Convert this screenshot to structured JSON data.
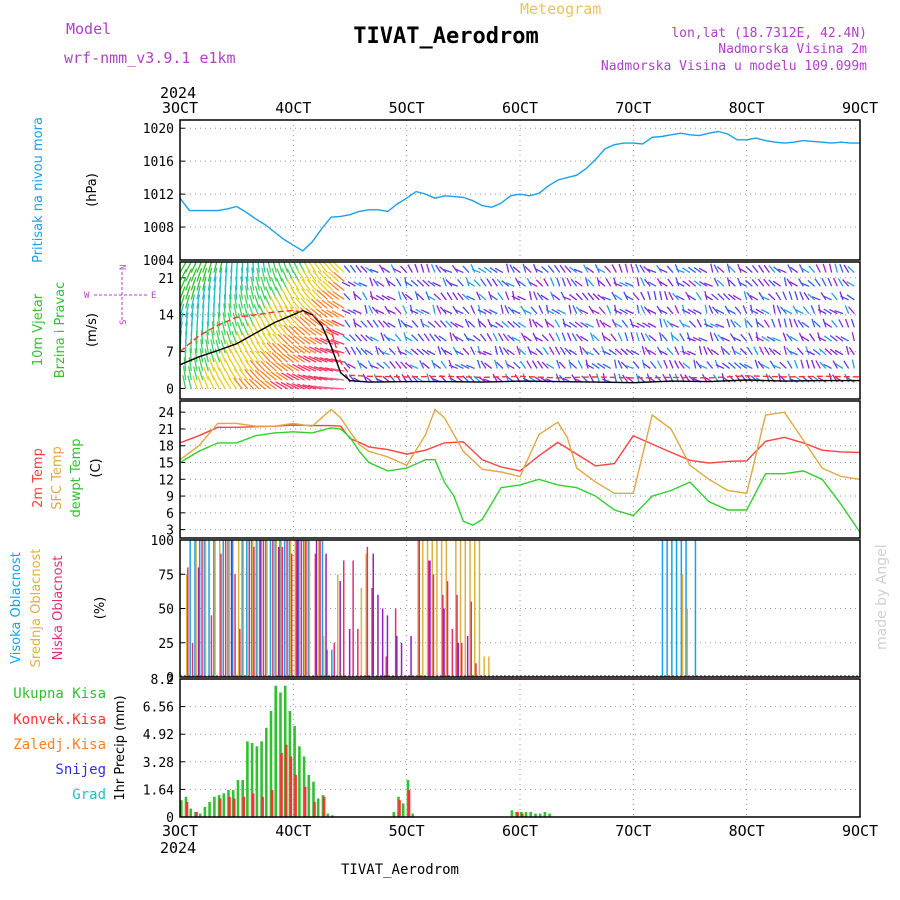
{
  "header": {
    "model_label": "Model",
    "model_name": "wrf-nmm_v3.9.1 e1km",
    "meteogram_label": "Meteogram",
    "station_title": "TIVAT_Aerodrom",
    "lonlat": "lon,lat (18.7312E, 42.4N)",
    "altitude": "Nadmorska Visina 2m",
    "model_altitude": "Nadmorska Visina u modelu 109.099m",
    "colors": {
      "purple": "#b040c8",
      "orange": "#f0c060",
      "title": "#000000"
    }
  },
  "footer": {
    "station": "TIVAT_Aerodrom"
  },
  "watermark": "made by Angel",
  "time_axis": {
    "year": "2024",
    "labels": [
      "3OCT",
      "4OCT",
      "5OCT",
      "6OCT",
      "7OCT",
      "8OCT",
      "9OCT"
    ]
  },
  "chart_data": [
    {
      "id": "pressure",
      "type": "line",
      "title": "",
      "ylabel_main": "Pritisak na nivou mora",
      "ylabel_unit": "(hPa)",
      "ylim": [
        1004,
        1021
      ],
      "yticks": [
        "1004",
        "1008",
        "1012",
        "1016",
        "1020"
      ],
      "grid": true,
      "x_range": [
        0,
        144
      ],
      "series": [
        {
          "color": "#1aa0e8",
          "x": [
            0,
            2,
            4,
            6,
            8,
            10,
            12,
            14,
            16,
            18,
            20,
            22,
            24,
            26,
            28,
            30,
            32,
            34,
            36,
            38,
            40,
            42,
            44,
            46,
            48,
            50,
            52,
            54,
            56,
            58,
            60,
            62,
            64,
            66,
            68,
            70,
            72,
            74,
            76,
            78,
            80,
            82,
            84,
            86,
            88,
            90,
            92,
            94,
            96,
            98,
            100,
            102,
            104,
            106,
            108,
            110,
            112,
            114,
            116,
            118,
            120,
            122,
            124,
            126,
            128,
            130,
            132,
            134,
            136,
            138,
            140,
            142,
            144
          ],
          "y": [
            1011.5,
            1010,
            1010,
            1010,
            1010,
            1010.2,
            1010.5,
            1009.8,
            1009,
            1008.3,
            1007.4,
            1006.5,
            1005.8,
            1005.1,
            1006.2,
            1007.8,
            1009.2,
            1009.3,
            1009.5,
            1009.9,
            1010.1,
            1010.1,
            1009.9,
            1010.8,
            1011.5,
            1012.3,
            1012,
            1011.5,
            1011.8,
            1011.7,
            1011.6,
            1011.2,
            1010.6,
            1010.4,
            1010.9,
            1011.8,
            1012,
            1011.8,
            1012.1,
            1013,
            1013.7,
            1014,
            1014.3,
            1015.1,
            1016.2,
            1017.5,
            1018,
            1018.2,
            1018.2,
            1018.1,
            1018.9,
            1019,
            1019.2,
            1019.4,
            1019.2,
            1019.1,
            1019.4,
            1019.6,
            1019.3,
            1018.6,
            1018.6,
            1018.8,
            1018.5,
            1018.3,
            1018.2,
            1018.3,
            1018.5,
            1018.4,
            1018.3,
            1018.2,
            1018.3,
            1018.2,
            1018.2
          ]
        }
      ]
    },
    {
      "id": "wind",
      "type": "line",
      "title": "",
      "ylabel_main": "10m Vjetar",
      "ylabel_sub": "Brzina i Pravac",
      "ylabel_unit": "(m/s)",
      "compass_labels": {
        "n": "N",
        "s": "S",
        "w": "W",
        "e": "E"
      },
      "ylim": [
        -2,
        24
      ],
      "yticks": [
        "0",
        "7",
        "14",
        "21"
      ],
      "grid": true,
      "x_range": [
        0,
        144
      ],
      "series": [
        {
          "color": "#000000",
          "x": [
            0,
            4,
            8,
            12,
            16,
            20,
            24,
            26,
            28,
            30,
            32,
            34,
            36,
            40,
            48,
            56,
            64,
            72,
            80,
            88,
            96,
            104,
            112,
            120,
            128,
            136,
            144
          ],
          "y": [
            4.5,
            6,
            7.2,
            8.5,
            10.5,
            12.5,
            14,
            14.8,
            14,
            12,
            8,
            3,
            1.5,
            1.2,
            1.3,
            1.3,
            1.2,
            1.4,
            1.3,
            1.2,
            1.1,
            1.4,
            1.3,
            1.6,
            1.4,
            1.5,
            1.5
          ]
        },
        {
          "color": "#ff3030",
          "dashed": true,
          "x": [
            0,
            4,
            8,
            12,
            16,
            20,
            24,
            28,
            32,
            34,
            36,
            40,
            48,
            56,
            64,
            72,
            80,
            88,
            96,
            104,
            112,
            120,
            128,
            136,
            144
          ],
          "y": [
            7,
            10,
            12,
            13.5,
            14,
            14.5,
            14.8,
            14,
            11,
            5,
            2.5,
            2.3,
            2.2,
            2.3,
            2.1,
            2.3,
            2,
            2.2,
            2,
            2.1,
            2,
            2.4,
            2.2,
            2.3,
            2.2
          ]
        }
      ]
    },
    {
      "id": "temperature",
      "type": "line",
      "title": "",
      "ylabels": [
        "2m Temp",
        "SFC Temp",
        "dewpt Temp"
      ],
      "ylabel_unit": "(C)",
      "ylim": [
        1.5,
        26
      ],
      "yticks": [
        "3",
        "6",
        "9",
        "12",
        "15",
        "18",
        "21",
        "24"
      ],
      "grid": true,
      "x_range": [
        0,
        144
      ],
      "series": [
        {
          "name": "2m Temp",
          "color": "#ff4040",
          "x": [
            0,
            4,
            8,
            12,
            16,
            20,
            24,
            28,
            32,
            34,
            36,
            38,
            40,
            44,
            48,
            52,
            56,
            60,
            64,
            68,
            72,
            76,
            80,
            84,
            88,
            92,
            96,
            100,
            104,
            108,
            112,
            116,
            120,
            124,
            128,
            132,
            136,
            140,
            144
          ],
          "y": [
            18.5,
            19.8,
            21.3,
            21.3,
            21.4,
            21.5,
            21.7,
            21.6,
            21.6,
            21.5,
            19.3,
            18.6,
            17.8,
            17.3,
            16.5,
            17.2,
            18.5,
            18.7,
            15.5,
            14.2,
            13.5,
            16.2,
            18.6,
            16.5,
            14.4,
            14.8,
            19.8,
            18.3,
            16.8,
            15.4,
            14.9,
            15.2,
            15.3,
            18.8,
            19.5,
            18.5,
            17.2,
            16.9,
            16.8
          ]
        },
        {
          "name": "SFC Temp",
          "color": "#e0a840",
          "x": [
            0,
            4,
            8,
            12,
            16,
            20,
            24,
            28,
            32,
            34,
            36,
            38,
            40,
            44,
            48,
            52,
            54,
            56,
            60,
            64,
            68,
            72,
            76,
            80,
            82,
            84,
            88,
            92,
            96,
            100,
            104,
            108,
            112,
            116,
            120,
            124,
            128,
            132,
            136,
            140,
            144
          ],
          "y": [
            15.5,
            18,
            22,
            22,
            21.5,
            21.5,
            22,
            21.5,
            24.5,
            23,
            20.5,
            18.2,
            17,
            16,
            14.5,
            20,
            24.5,
            23,
            17,
            13.8,
            13.3,
            12.5,
            20,
            22.2,
            19.5,
            14,
            11.5,
            9.5,
            9.5,
            23.5,
            21,
            14.5,
            12,
            10,
            9.5,
            23.5,
            24,
            19,
            14,
            12.5,
            12
          ]
        },
        {
          "name": "dewpt Temp",
          "color": "#30d030",
          "x": [
            0,
            4,
            8,
            12,
            16,
            20,
            24,
            28,
            32,
            34,
            36,
            38,
            40,
            44,
            48,
            52,
            54,
            56,
            58,
            60,
            62,
            64,
            68,
            72,
            76,
            80,
            84,
            88,
            92,
            96,
            100,
            104,
            108,
            112,
            116,
            120,
            124,
            128,
            132,
            136,
            140,
            144
          ],
          "y": [
            15,
            17,
            18.5,
            18.5,
            19.8,
            20.3,
            20.5,
            20.3,
            21.2,
            21,
            19.5,
            17,
            15,
            13.5,
            14,
            15.5,
            15.5,
            11.5,
            9,
            4.5,
            3.8,
            4.8,
            10.5,
            11,
            12,
            11,
            10.5,
            9,
            6.5,
            5.5,
            9,
            10,
            11.5,
            8,
            6.5,
            6.5,
            13,
            13,
            13.5,
            12,
            7.5,
            2.5
          ]
        }
      ]
    },
    {
      "id": "clouds",
      "type": "bar",
      "title": "",
      "ylabels": [
        "Visoka Oblacnost",
        "Srednja Oblacnost",
        "Niska Oblacnost"
      ],
      "ylabel_unit": "(%)",
      "ylim": [
        0,
        100
      ],
      "yticks": [
        "0",
        "25",
        "50",
        "75",
        "100"
      ],
      "grid": true,
      "x_range": [
        0,
        144
      ],
      "series": [
        {
          "name": "Visoka Oblacnost",
          "color": "#1aa0e8",
          "x": [
            2,
            3,
            4,
            5,
            6,
            7,
            9,
            10,
            11,
            13,
            14,
            15,
            16,
            17,
            18,
            19,
            20,
            21,
            22,
            23,
            25,
            26,
            27,
            30,
            31,
            32,
            102,
            103,
            104,
            105,
            106,
            107,
            109
          ],
          "y": [
            100,
            100,
            100,
            100,
            100,
            100,
            100,
            100,
            100,
            100,
            100,
            100,
            100,
            100,
            100,
            100,
            100,
            100,
            100,
            100,
            100,
            100,
            100,
            100,
            20,
            20,
            100,
            100,
            100,
            100,
            100,
            100,
            100
          ]
        },
        {
          "name": "Srednja Oblacnost",
          "color": "#e0b040",
          "x": [
            1,
            3,
            5,
            7,
            8,
            10,
            12,
            13,
            15,
            16,
            18,
            20,
            21,
            23,
            24,
            26,
            27,
            29,
            30,
            33,
            38,
            39,
            50,
            51,
            52,
            53,
            54,
            55,
            56,
            58,
            59,
            60,
            61,
            62,
            63,
            64,
            65,
            106,
            107
          ],
          "y": [
            75,
            100,
            100,
            100,
            100,
            100,
            100,
            100,
            100,
            100,
            100,
            100,
            100,
            100,
            100,
            100,
            100,
            100,
            30,
            75,
            65,
            90,
            100,
            100,
            100,
            100,
            100,
            100,
            100,
            100,
            100,
            100,
            100,
            100,
            100,
            15,
            15,
            75,
            50
          ]
        },
        {
          "name": "Niska Oblacnost",
          "color": "#e03070",
          "x": [
            1,
            2,
            4,
            6,
            8,
            9,
            11,
            12,
            14,
            15,
            17,
            19,
            21,
            22,
            23,
            24,
            25,
            26,
            28,
            29,
            32,
            34,
            36,
            37,
            39,
            40,
            43,
            45,
            50,
            52,
            53,
            55,
            56,
            57,
            58,
            59,
            61,
            62
          ],
          "y": [
            80,
            25,
            100,
            45,
            90,
            100,
            75,
            35,
            100,
            95,
            100,
            100,
            95,
            100,
            90,
            100,
            100,
            100,
            90,
            100,
            25,
            85,
            85,
            35,
            95,
            65,
            15,
            50,
            100,
            85,
            75,
            60,
            70,
            35,
            60,
            25,
            55,
            10
          ]
        },
        {
          "name": "Violet",
          "color": "#9020c0",
          "x": [
            3,
            10,
            16,
            20,
            24,
            28,
            30,
            33,
            35,
            40,
            41,
            42,
            43,
            45,
            46,
            48,
            52,
            55,
            58,
            60
          ],
          "y": [
            80,
            100,
            100,
            95,
            100,
            100,
            90,
            70,
            35,
            90,
            60,
            50,
            45,
            30,
            25,
            30,
            85,
            50,
            25,
            30
          ]
        }
      ]
    },
    {
      "id": "precip",
      "type": "bar",
      "title": "",
      "ylabels": [
        "Ukupna Kisa",
        "Konvek.Kisa",
        "Zaledj.Kisa",
        "Snijeg",
        "Grad"
      ],
      "ylabel_unit": "1hr Precip (mm)",
      "label_colors": [
        "#30c030",
        "#ff3030",
        "#ff8020",
        "#3030e0",
        "#20c0c0"
      ],
      "ylim": [
        0,
        8.2
      ],
      "yticks": [
        "0",
        "1.64",
        "3.28",
        "4.92",
        "6.56",
        "8.2"
      ],
      "grid": true,
      "x_range": [
        0,
        144
      ],
      "series": [
        {
          "name": "Ukupna Kisa",
          "color": "#30c030",
          "x": [
            0,
            1,
            2,
            3,
            4,
            5,
            6,
            7,
            8,
            9,
            10,
            11,
            12,
            13,
            14,
            15,
            16,
            17,
            18,
            19,
            20,
            21,
            22,
            23,
            24,
            25,
            26,
            27,
            28,
            29,
            30,
            31,
            32,
            45,
            46,
            47,
            48,
            49,
            70,
            71,
            72,
            73,
            74,
            75,
            76,
            77,
            78
          ],
          "y": [
            1,
            1.2,
            0.5,
            0.3,
            0.2,
            0.6,
            0.9,
            1.2,
            1.3,
            1.4,
            1.6,
            1.6,
            2.2,
            2.2,
            4.5,
            4.4,
            4.2,
            4.5,
            5.3,
            6.3,
            7.8,
            7.4,
            7.8,
            6.3,
            5.4,
            4.2,
            3.6,
            2.5,
            2.1,
            1.1,
            1.3,
            0.2,
            0.1,
            0.3,
            1.2,
            0.8,
            2.2,
            0.2,
            0.4,
            0.3,
            0.3,
            0.3,
            0.3,
            0.2,
            0.2,
            0.3,
            0.2
          ]
        },
        {
          "name": "Konvek.Kisa",
          "color": "#ff3030",
          "x": [
            1,
            3,
            8,
            10,
            11,
            13,
            15,
            17,
            19,
            21,
            22,
            23,
            24,
            26,
            28,
            30,
            46,
            48,
            71,
            72
          ],
          "y": [
            0.9,
            0.3,
            1.1,
            1.2,
            1.1,
            1.2,
            1.4,
            1.2,
            1.6,
            3.8,
            4.3,
            3.6,
            2.5,
            1.8,
            0.9,
            1.2,
            1,
            1.6,
            0.3,
            0.2
          ]
        }
      ]
    }
  ]
}
